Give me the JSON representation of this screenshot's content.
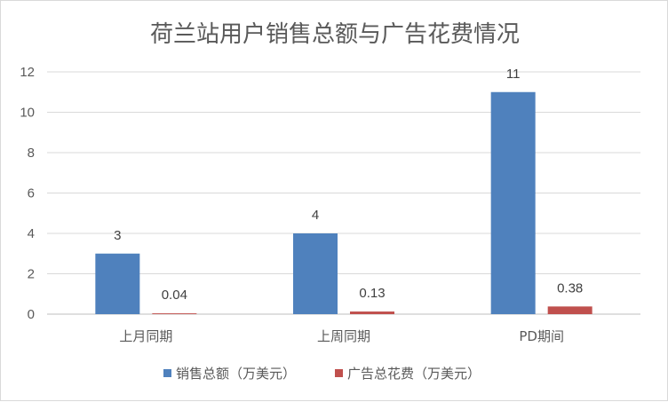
{
  "chart_data": {
    "type": "bar",
    "title": "荷兰站用户销售总额与广告花费情况",
    "categories": [
      "上月同期",
      "上周同期",
      "PD期间"
    ],
    "series": [
      {
        "name": "销售总额（万美元）",
        "values": [
          3,
          4,
          11
        ],
        "labels": [
          "3",
          "4",
          "11"
        ],
        "color": "#4f81bd"
      },
      {
        "name": "广告总花费（万美元）",
        "values": [
          0.04,
          0.13,
          0.38
        ],
        "labels": [
          "0.04",
          "0.13",
          "0.38"
        ],
        "color": "#c0504d"
      }
    ],
    "ylim": [
      0,
      12
    ],
    "yticks": [
      "0",
      "2",
      "4",
      "6",
      "8",
      "10",
      "12"
    ],
    "grid": true,
    "legend_position": "bottom"
  }
}
